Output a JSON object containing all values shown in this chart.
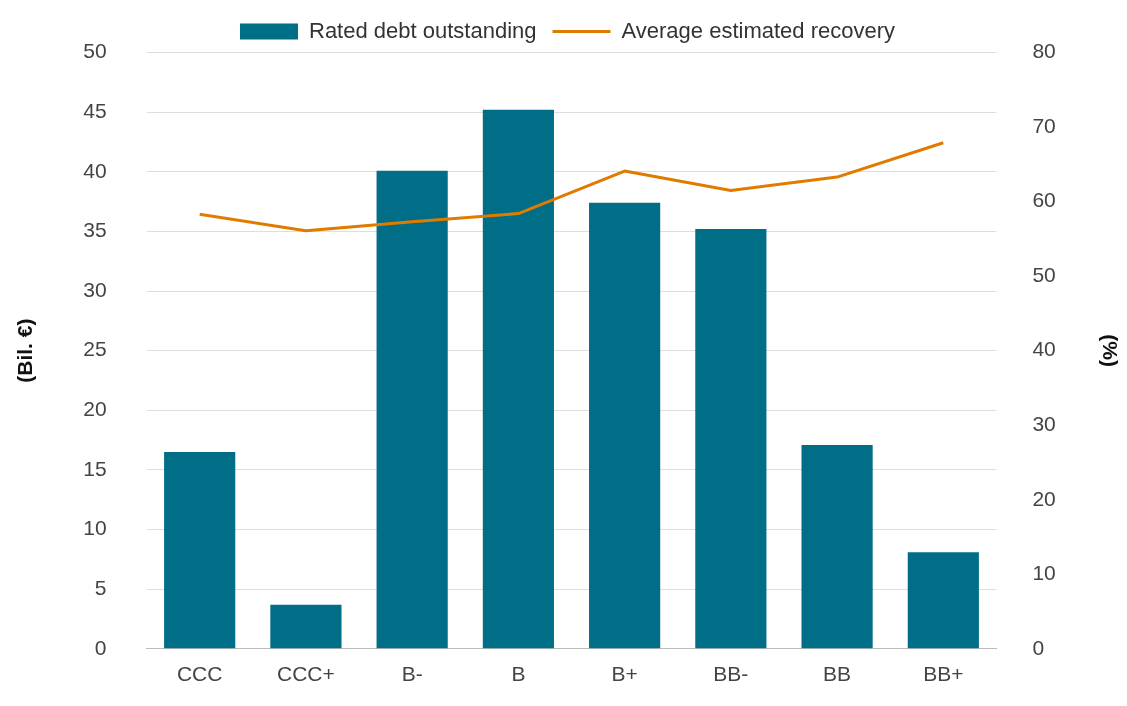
{
  "chart_data": {
    "type": "bar",
    "categories": [
      "CCC",
      "CCC+",
      "B-",
      "B",
      "B+",
      "BB-",
      "BB",
      "BB+"
    ],
    "series": [
      {
        "name": "Rated debt outstanding",
        "color": "#006e87",
        "values": [
          16.5,
          3.7,
          40.1,
          45.2,
          37.4,
          35.2,
          17.1,
          8.1
        ]
      },
      {
        "name": "Average estimated recovery",
        "type": "line",
        "axis": "y2",
        "color": "#e07b00",
        "values": [
          58.3,
          56.1,
          57.3,
          58.4,
          64.1,
          61.5,
          63.3,
          67.9
        ]
      }
    ],
    "ylabel": "(Bil. €)",
    "y2label": "(%)",
    "ylim": [
      0,
      50
    ],
    "yticks": [
      0,
      5,
      10,
      15,
      20,
      25,
      30,
      35,
      40,
      45,
      50
    ],
    "y2lim": [
      0,
      80
    ],
    "y2ticks": [
      0,
      10,
      20,
      30,
      40,
      50,
      60,
      70,
      80
    ],
    "grid": "y",
    "legend": "top",
    "marker": "none",
    "line_style": "solid"
  }
}
